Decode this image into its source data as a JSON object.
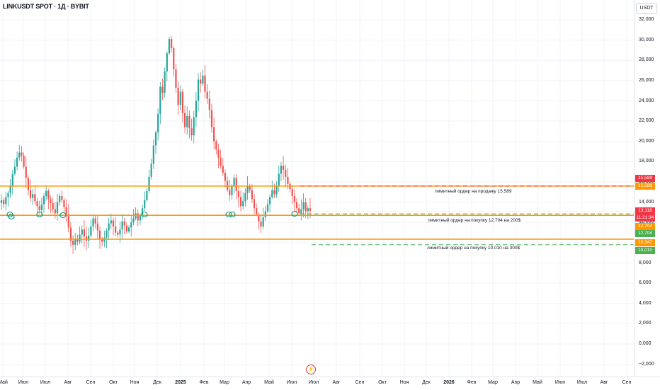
{
  "header": {
    "symbol_title": "LINKUSDT SPOT · 1Д · BYBIT",
    "currency_button": "USDT"
  },
  "price_scale": {
    "ticks": [
      "32,000",
      "30,000",
      "28,000",
      "26,000",
      "24,000",
      "22,000",
      "20,000",
      "18,000",
      "16,000",
      "14,000",
      "12,000",
      "10,000",
      "8,000",
      "6,000",
      "4,000",
      "2,000",
      "0,000",
      "−2,000"
    ]
  },
  "time_axis": {
    "labels": [
      {
        "text": "Май",
        "bold": false
      },
      {
        "text": "Июн",
        "bold": false
      },
      {
        "text": "Июл",
        "bold": false
      },
      {
        "text": "Авг",
        "bold": false
      },
      {
        "text": "Сен",
        "bold": false
      },
      {
        "text": "Окт",
        "bold": false
      },
      {
        "text": "Ноя",
        "bold": false
      },
      {
        "text": "Дек",
        "bold": false
      },
      {
        "text": "2025",
        "bold": true
      },
      {
        "text": "Фев",
        "bold": false
      },
      {
        "text": "Мар",
        "bold": false
      },
      {
        "text": "Апр",
        "bold": false
      },
      {
        "text": "Май",
        "bold": false
      },
      {
        "text": "Июн",
        "bold": false
      },
      {
        "text": "Июл",
        "bold": false
      },
      {
        "text": "Авг",
        "bold": false
      },
      {
        "text": "Сен",
        "bold": false
      },
      {
        "text": "Окт",
        "bold": false
      },
      {
        "text": "Ноя",
        "bold": false
      },
      {
        "text": "Дек",
        "bold": false
      },
      {
        "text": "2026",
        "bold": true
      },
      {
        "text": "Фев",
        "bold": false
      },
      {
        "text": "Мар",
        "bold": false
      },
      {
        "text": "Апр",
        "bold": false
      },
      {
        "text": "Май",
        "bold": false
      },
      {
        "text": "Июн",
        "bold": false
      },
      {
        "text": "Июл",
        "bold": false
      },
      {
        "text": "Авг",
        "bold": false
      },
      {
        "text": "Сен",
        "bold": false
      }
    ]
  },
  "drawings": {
    "sell_note": "лимитный ордер на продажу 15.589",
    "buy_note_1": "лимитный ордер на покупку 12.704 на 200$",
    "buy_note_2": "лимитный ордер на покупку 10.010 на 300$",
    "support_circles_count": 8
  },
  "price_badges": {
    "sell_order_1": {
      "text": "15,589",
      "color": "#f23645"
    },
    "sell_order_2": {
      "text": "15,589",
      "color": "#ff9800"
    },
    "last_price": {
      "text": "13,118",
      "color": "#f23645"
    },
    "countdown": {
      "text": "11:21:34",
      "color": "#f23645"
    },
    "buy_order_1": {
      "text": "12,704",
      "color": "#ff9800"
    },
    "buy_order_1b": {
      "text": "12,704",
      "color": "#4caf50"
    },
    "level_3": {
      "text": "10,347",
      "color": "#ff9800"
    },
    "buy_order_2": {
      "text": "10,010",
      "color": "#4caf50"
    }
  },
  "colors": {
    "up_candle": "#26a69a",
    "down_candle": "#ef5350",
    "level_line": "#ff9800",
    "sell_order_line": "#f23645",
    "buy_order_line": "#4caf50",
    "circle": "#089981"
  },
  "chart_data": {
    "type": "candlestick",
    "ylim": [
      -2.7,
      32.5
    ],
    "horizontal_levels": [
      15.589,
      12.704,
      10.347
    ],
    "orders": [
      {
        "side": "sell",
        "price": 15.589
      },
      {
        "side": "buy",
        "price": 12.704,
        "amount_usd": 200
      },
      {
        "side": "buy",
        "price": 10.01,
        "amount_usd": 300
      }
    ],
    "last_price": 13.118,
    "daily_closes_approx": [
      14.2,
      13.8,
      14.5,
      14.9,
      15.6,
      16.8,
      17.5,
      18.4,
      18.9,
      18.6,
      17.5,
      16.4,
      15.2,
      14.4,
      14.8,
      14.1,
      13.6,
      13.2,
      13.8,
      14.6,
      15.1,
      14.3,
      13.9,
      13.3,
      12.9,
      14.0,
      14.6,
      14.2,
      13.5,
      12.8,
      11.5,
      10.2,
      9.8,
      10.4,
      10.1,
      10.8,
      11.3,
      10.6,
      10.2,
      10.7,
      11.6,
      12.4,
      11.9,
      11.2,
      10.4,
      10.1,
      10.5,
      11.2,
      11.9,
      12.2,
      11.6,
      11.0,
      10.8,
      11.3,
      12.1,
      11.7,
      11.1,
      11.5,
      12.0,
      12.4,
      12.9,
      12.2,
      12.7,
      13.4,
      14.2,
      15.1,
      16.5,
      17.8,
      19.6,
      20.9,
      22.7,
      25.4,
      24.8,
      26.9,
      28.7,
      30.1,
      29.2,
      27.1,
      25.3,
      23.6,
      24.9,
      22.8,
      21.4,
      22.5,
      21.3,
      20.6,
      22.4,
      24.0,
      26.1,
      25.7,
      26.5,
      24.9,
      24.2,
      23.1,
      21.4,
      20.0,
      19.2,
      18.4,
      17.6,
      16.9,
      16.1,
      15.2,
      14.7,
      15.6,
      16.4,
      15.1,
      14.5,
      13.6,
      14.1,
      14.9,
      15.6,
      15.2,
      14.3,
      13.4,
      12.8,
      12.1,
      11.6,
      12.5,
      13.1,
      13.8,
      14.5,
      15.2,
      14.8,
      15.6,
      16.8,
      17.6,
      17.2,
      16.5,
      15.8,
      15.3,
      14.6,
      14.0,
      13.4,
      12.9,
      13.3,
      14.0,
      13.1,
      13.4,
      13.118
    ]
  }
}
